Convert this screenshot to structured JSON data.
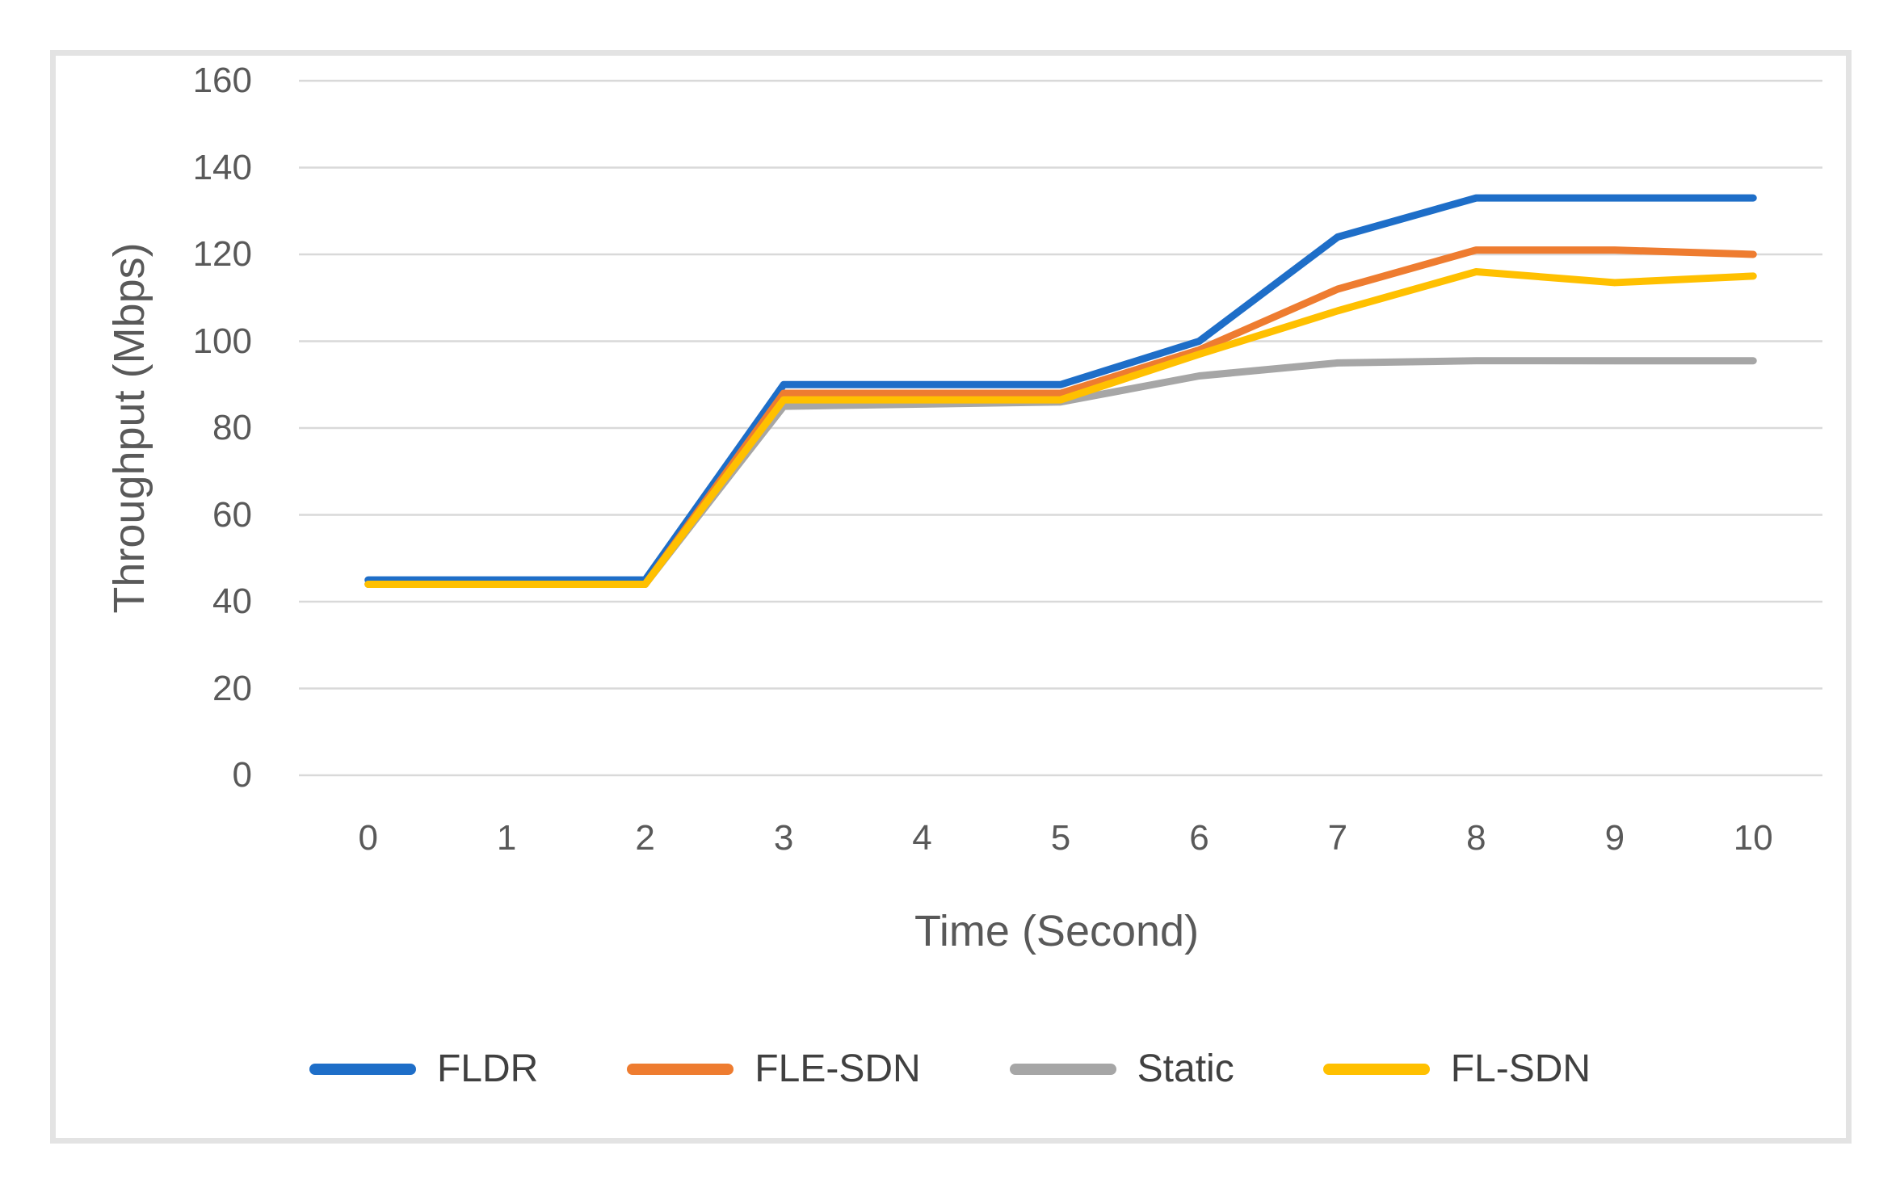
{
  "figure": {
    "background": "#ffffff",
    "border_color": "#e3e3e3"
  },
  "chart_data": {
    "type": "line",
    "title": "",
    "xlabel": "Time (Second)",
    "ylabel": "Throughput (Mbps)",
    "categories": [
      0,
      1,
      2,
      3,
      4,
      5,
      6,
      7,
      8,
      9,
      10
    ],
    "xticks": [
      "0",
      "1",
      "2",
      "3",
      "4",
      "5",
      "6",
      "7",
      "8",
      "9",
      "10"
    ],
    "yticks": [
      "0",
      "20",
      "40",
      "60",
      "80",
      "100",
      "120",
      "140",
      "160"
    ],
    "ylim": [
      0,
      160
    ],
    "ytick_step": 20,
    "grid": "horizontal",
    "gridline_color": "#d9d9d9",
    "tick_label_color": "#595959",
    "axis_title_color": "#595959",
    "legend_position": "bottom",
    "series": [
      {
        "name": "FLDR",
        "color": "#1e6ec8",
        "values": [
          45,
          45,
          45,
          90,
          90,
          90,
          100,
          124,
          133,
          133,
          133
        ]
      },
      {
        "name": "FLE-SDN",
        "color": "#ee7c30",
        "values": [
          44,
          44,
          44,
          88,
          88,
          88,
          98,
          112,
          121,
          121,
          120
        ]
      },
      {
        "name": "Static",
        "color": "#a6a6a6",
        "values": [
          44,
          44,
          44,
          85,
          85.5,
          86,
          92,
          95,
          95.5,
          95.5,
          95.5
        ]
      },
      {
        "name": "FL-SDN",
        "color": "#ffc000",
        "values": [
          44,
          44,
          44,
          86.5,
          86.5,
          86.5,
          97,
          107,
          116,
          113.5,
          115
        ]
      }
    ]
  }
}
